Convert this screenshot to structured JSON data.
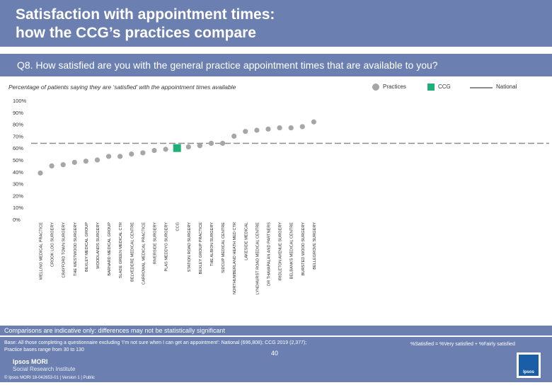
{
  "header": {
    "title_line1": "Satisfaction with appointment times:",
    "title_line2": "how the CCG’s practices compare"
  },
  "question": "Q8. How satisfied are you with the general practice appointment times that are available to you?",
  "subtitle": "Percentage of patients saying they are ‘satisfied’ with the appointment times available",
  "legend": {
    "practices": "Practices",
    "ccg": "CCG",
    "national": "National"
  },
  "colors": {
    "practice": "#a6a6a6",
    "ccg": "#1fb07a",
    "national": "#8c8c8c",
    "header": "#6b7fb0"
  },
  "chart_data": {
    "type": "scatter",
    "title": "Percentage of patients saying they are ‘satisfied’ with the appointment times available",
    "ylim": [
      0,
      100
    ],
    "yticks": [
      0,
      10,
      20,
      30,
      40,
      50,
      60,
      70,
      80,
      90,
      100
    ],
    "ytick_labels": [
      "0%",
      "10%",
      "20%",
      "30%",
      "40%",
      "50%",
      "60%",
      "70%",
      "80%",
      "90%",
      "100%"
    ],
    "national": 64,
    "categories": [
      "WELLING MEDICAL PRACTICE",
      "CROOK LOG SURGERY",
      "CRAYFORD TOWN SURGERY",
      "THE WESTWOOD SURGERY",
      "BEXLEY MEDICAL GROUP",
      "WOODLANDS SURGERY",
      "BARNARD MEDICAL GROUP",
      "SLADE GREEN MEDICAL CTR",
      "BELVEDERE MEDICAL CENTRE",
      "CARROWAL MEDICAL PRACTICE",
      "RIVERSIDE SURGERY",
      "PLAS MEDDYG SURGERY",
      "CCG",
      "STATION ROAD SURGERY",
      "BEXLEY GROUP PRACTICE",
      "THE ALBION SURGERY",
      "SIDCUP MEDICAL CENTRE",
      "NORTHUMBERLAND HEATH MED CTR",
      "LAKESIDE MEDICAL",
      "LYNDHURST ROAD MEDICAL CENTRE",
      "DR THAVAPALAN AND PARTNERS",
      "IRIDLETON AVENUE SURGERY",
      "BELBANKS MEDICAL CENTRE",
      "BURSTED WOOD SURGERY",
      "BELLEGROVE SURGERY"
    ],
    "values": [
      39,
      45,
      46,
      48,
      49,
      50,
      53,
      53,
      55,
      56,
      58,
      59,
      60,
      61,
      62,
      64,
      64,
      70,
      74,
      75,
      76,
      77,
      77,
      78,
      82
    ],
    "highlight": "CCG"
  },
  "comparisons_note": "Comparisons are indicative only: differences may not be statistically significant",
  "footer": {
    "base_line1": "Base: All those completing a questionnaire excluding ‘I’m not sure when I can get an appointment’: National (696,808); CCG 2019 (2,377);",
    "base_line2": "Practice bases range from 30 to 130",
    "definition": "%Satisfied = %Very satisfied + %Fairly satisfied",
    "logo_line1": "Ipsos MORI",
    "logo_line2": "Social Research Institute",
    "copyright": "© Ipsos MORI     18-042653-01 | Version 1 | Public",
    "page_number": "40",
    "badge": "Ipsos"
  }
}
